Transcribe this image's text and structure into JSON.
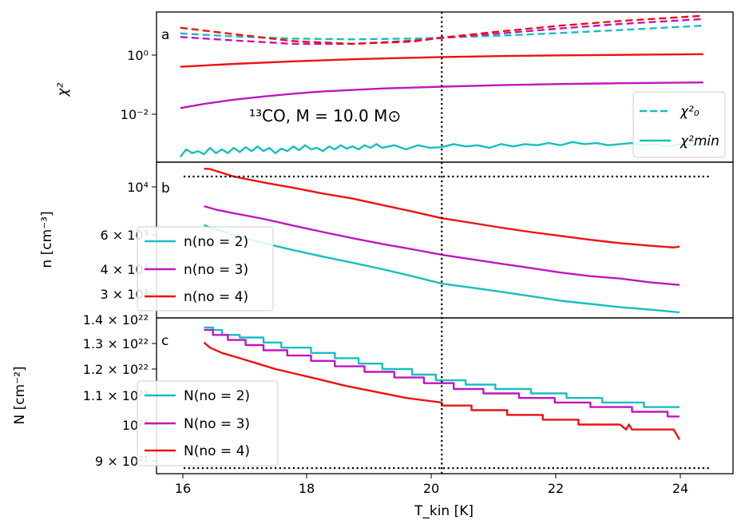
{
  "figure": {
    "xlabel": "T_kin [K]",
    "xtick_labels": [
      "16",
      "18",
      "20",
      "22",
      "24"
    ],
    "xlim": [
      15.2,
      24.9
    ],
    "vline_x": 20.0
  },
  "panels": [
    {
      "letter": "a",
      "ylabel": "χ²",
      "ytick_labels": [
        "10⁰",
        "10⁻²"
      ],
      "annotation": "¹³CO,  M = 10.0 M⊙",
      "legend": [
        "χ²₀",
        "χ²min"
      ]
    },
    {
      "letter": "b",
      "ylabel": "n [cm⁻³]",
      "ytick_labels": [
        "10⁴",
        "6 × 10³",
        "4 × 10³",
        "3 × 10³"
      ],
      "legend": [
        "n(no = 2)",
        "n(no = 3)",
        "n(no = 4)"
      ]
    },
    {
      "letter": "c",
      "ylabel": "N [cm⁻²]",
      "ytick_labels": [
        "1.4 × 10²²",
        "1.3 × 10²²",
        "1.2 × 10²²",
        "1.1 × 10²²",
        "10²²",
        "9 × 10²¹"
      ],
      "legend": [
        "N(no = 2)",
        "N(no = 3)",
        "N(no = 4)"
      ]
    }
  ],
  "colors": {
    "cyan": "#17bfbf",
    "magenta": "#bf17bf",
    "red": "#ee1111"
  },
  "chart_data": [
    {
      "type": "line",
      "panel": "a",
      "yscale": "log",
      "ylim": [
        0.0003,
        30
      ],
      "series": [
        {
          "name": "χ²₀",
          "style": "dashed",
          "color": "#17bfbf",
          "x": [
            15.6,
            16.5,
            17.5,
            18.5,
            19.5,
            20.0,
            21.0,
            22.0,
            23.0,
            24.4
          ],
          "values": [
            5.8,
            4.6,
            3.9,
            3.7,
            3.9,
            4.2,
            4.9,
            6.0,
            7.5,
            10.5
          ]
        },
        {
          "style": "dashed",
          "color": "#bf17bf",
          "x": [
            15.6,
            16.5,
            17.5,
            18.5,
            19.5,
            20.0,
            21.0,
            22.0,
            23.0,
            24.4
          ],
          "values": [
            4.4,
            3.4,
            2.6,
            2.6,
            3.3,
            4.1,
            5.8,
            8.5,
            12.0,
            17.5
          ]
        },
        {
          "style": "dashed",
          "color": "#ee1111",
          "x": [
            15.6,
            16.5,
            17.5,
            18.5,
            19.5,
            20.0,
            21.0,
            22.0,
            23.0,
            24.4
          ],
          "values": [
            9.0,
            5.5,
            3.2,
            2.6,
            3.1,
            4.2,
            6.8,
            10.5,
            15.0,
            22.5
          ]
        },
        {
          "name": "χ²min",
          "style": "solid",
          "color": "#bf17bf",
          "x": [
            15.6,
            16.0,
            16.5,
            17.0,
            17.5,
            18.0,
            19.0,
            20.0,
            21.0,
            22.0,
            23.0,
            24.4
          ],
          "values": [
            0.019,
            0.026,
            0.036,
            0.046,
            0.057,
            0.068,
            0.085,
            0.098,
            0.11,
            0.12,
            0.127,
            0.135
          ]
        },
        {
          "style": "solid",
          "color": "#ee1111",
          "x": [
            15.6,
            16.5,
            17.5,
            18.5,
            19.5,
            20.0,
            21.0,
            22.0,
            23.0,
            24.4
          ],
          "values": [
            0.45,
            0.56,
            0.68,
            0.8,
            0.9,
            0.95,
            1.02,
            1.08,
            1.12,
            1.18
          ]
        },
        {
          "style": "solid",
          "color": "#17bfbf",
          "x": [
            15.6,
            15.7,
            15.8,
            15.9,
            16.0,
            16.1,
            16.2,
            16.3,
            16.4,
            16.5,
            16.6,
            16.7,
            16.8,
            16.9,
            17.0,
            17.1,
            17.2,
            17.3,
            17.4,
            17.5,
            17.6,
            17.7,
            17.8,
            17.9,
            18.0,
            18.1,
            18.2,
            18.3,
            18.4,
            18.5,
            18.6,
            18.7,
            18.8,
            18.9,
            19.0,
            19.2,
            19.4,
            19.6,
            19.8,
            20.0,
            20.2,
            20.4,
            20.6,
            20.8,
            21.0,
            21.2,
            21.4,
            21.6,
            21.8,
            22.0,
            22.2,
            22.4,
            22.6,
            22.8,
            23.0,
            23.2,
            23.4,
            23.6,
            23.8,
            24.0,
            24.2,
            24.4
          ],
          "values": [
            0.00045,
            0.0008,
            0.0006,
            0.0007,
            0.00055,
            0.0009,
            0.0006,
            0.0008,
            0.0006,
            0.0009,
            0.00065,
            0.00095,
            0.0007,
            0.001,
            0.0007,
            0.0009,
            0.0006,
            0.00085,
            0.0007,
            0.001,
            0.00075,
            0.0011,
            0.0008,
            0.0009,
            0.0007,
            0.001,
            0.0008,
            0.0011,
            0.00085,
            0.001,
            0.0008,
            0.0011,
            0.0009,
            0.0012,
            0.0009,
            0.0011,
            0.0008,
            0.0011,
            0.0009,
            0.00095,
            0.0012,
            0.001,
            0.0011,
            0.0009,
            0.0012,
            0.001,
            0.0012,
            0.0011,
            0.0013,
            0.0011,
            0.0014,
            0.0012,
            0.0013,
            0.0011,
            0.0012,
            0.0013,
            0.0011,
            0.0012,
            0.001,
            0.0012,
            0.0011,
            0.0012
          ]
        }
      ]
    },
    {
      "type": "line",
      "panel": "b",
      "yscale": "log",
      "ylim": [
        2450,
        13200
      ],
      "hline": 11300,
      "series": [
        {
          "name": "n(no = 2)",
          "color": "#17bfbf",
          "x": [
            16.0,
            16.1,
            16.2,
            16.5,
            17.0,
            17.5,
            18.0,
            18.5,
            19.0,
            19.5,
            20.0,
            20.5,
            21.0,
            21.5,
            22.0,
            22.5,
            23.0,
            23.5,
            24.0
          ],
          "values": [
            6700,
            6500,
            6400,
            6000,
            5500,
            5100,
            4750,
            4450,
            4150,
            3850,
            3550,
            3400,
            3250,
            3100,
            2950,
            2850,
            2750,
            2680,
            2600
          ]
        },
        {
          "name": "n(no = 3)",
          "color": "#bf17bf",
          "x": [
            16.0,
            16.2,
            16.5,
            17.0,
            17.5,
            18.0,
            18.5,
            19.0,
            19.5,
            20.0,
            20.5,
            21.0,
            21.5,
            22.0,
            22.5,
            23.0,
            23.5,
            24.0
          ],
          "values": [
            8200,
            7900,
            7600,
            7150,
            6650,
            6200,
            5800,
            5450,
            5150,
            4850,
            4620,
            4400,
            4200,
            4000,
            3850,
            3750,
            3600,
            3500
          ]
        },
        {
          "name": "n(no = 4)",
          "color": "#ee1111",
          "x": [
            16.0,
            16.1,
            16.2,
            16.5,
            17.0,
            17.5,
            18.0,
            18.5,
            19.0,
            19.5,
            20.0,
            20.5,
            21.0,
            21.5,
            22.0,
            22.5,
            23.0,
            23.5,
            23.9,
            24.0
          ],
          "values": [
            12300,
            12250,
            12000,
            11300,
            10600,
            10000,
            9400,
            8900,
            8300,
            7750,
            7200,
            6850,
            6500,
            6200,
            5950,
            5700,
            5500,
            5350,
            5250,
            5300
          ]
        }
      ]
    },
    {
      "type": "line",
      "panel": "c",
      "yscale": "log",
      "ylim": [
        8.85e+21,
        1.41e+22
      ],
      "hline": 9e+21,
      "series": [
        {
          "name": "N(no = 2)",
          "color": "#17bfbf",
          "x": [
            16.0,
            16.15,
            16.15,
            16.3,
            16.3,
            16.6,
            16.6,
            17.0,
            17.0,
            17.3,
            17.3,
            17.8,
            17.8,
            18.2,
            18.2,
            18.6,
            18.6,
            19.0,
            19.0,
            19.5,
            19.5,
            19.9,
            19.9,
            20.4,
            20.4,
            20.9,
            20.9,
            21.5,
            21.5,
            22.1,
            22.1,
            22.7,
            22.7,
            23.4,
            23.4,
            24.0
          ],
          "values": [
            1.37e+22,
            1.37e+22,
            1.36e+22,
            1.36e+22,
            1.34e+22,
            1.34e+22,
            1.33e+22,
            1.33e+22,
            1.31e+22,
            1.31e+22,
            1.29e+22,
            1.29e+22,
            1.27e+22,
            1.27e+22,
            1.25e+22,
            1.25e+22,
            1.23e+22,
            1.23e+22,
            1.21e+22,
            1.21e+22,
            1.19e+22,
            1.19e+22,
            1.17e+22,
            1.17e+22,
            1.155e+22,
            1.155e+22,
            1.14e+22,
            1.14e+22,
            1.125e+22,
            1.125e+22,
            1.11e+22,
            1.11e+22,
            1.095e+22,
            1.095e+22,
            1.08e+22,
            1.08e+22
          ]
        },
        {
          "name": "N(no = 3)",
          "color": "#bf17bf",
          "x": [
            16.0,
            16.15,
            16.15,
            16.4,
            16.4,
            16.7,
            16.7,
            17.0,
            17.0,
            17.4,
            17.4,
            17.8,
            17.8,
            18.2,
            18.2,
            18.7,
            18.7,
            19.2,
            19.2,
            19.7,
            19.7,
            20.2,
            20.2,
            20.7,
            20.7,
            21.3,
            21.3,
            21.9,
            21.9,
            22.5,
            22.5,
            23.2,
            23.2,
            23.8,
            23.8,
            24.0
          ],
          "values": [
            1.36e+22,
            1.36e+22,
            1.34e+22,
            1.34e+22,
            1.32e+22,
            1.32e+22,
            1.3e+22,
            1.3e+22,
            1.28e+22,
            1.28e+22,
            1.26e+22,
            1.26e+22,
            1.24e+22,
            1.24e+22,
            1.22e+22,
            1.22e+22,
            1.2e+22,
            1.2e+22,
            1.18e+22,
            1.18e+22,
            1.16e+22,
            1.16e+22,
            1.14e+22,
            1.14e+22,
            1.125e+22,
            1.125e+22,
            1.11e+22,
            1.11e+22,
            1.095e+22,
            1.095e+22,
            1.08e+22,
            1.08e+22,
            1.065e+22,
            1.065e+22,
            1.05e+22,
            1.05e+22
          ]
        },
        {
          "name": "N(no = 4)",
          "color": "#ee1111",
          "x": [
            16.0,
            16.1,
            16.1,
            16.3,
            16.3,
            16.6,
            16.6,
            16.9,
            16.9,
            17.2,
            17.2,
            17.6,
            17.6,
            18.0,
            18.0,
            18.4,
            18.4,
            18.9,
            18.9,
            19.4,
            19.4,
            20.0,
            20.0,
            20.5,
            20.5,
            21.1,
            21.1,
            21.7,
            21.7,
            22.3,
            22.3,
            23.0,
            23.1,
            23.15,
            23.2,
            23.3,
            23.3,
            23.9,
            24.0
          ],
          "values": [
            1.31e+22,
            1.29e+22,
            1.29e+22,
            1.27e+22,
            1.27e+22,
            1.25e+22,
            1.25e+22,
            1.23e+22,
            1.23e+22,
            1.21e+22,
            1.21e+22,
            1.19e+22,
            1.19e+22,
            1.17e+22,
            1.17e+22,
            1.15e+22,
            1.15e+22,
            1.13e+22,
            1.13e+22,
            1.11e+22,
            1.11e+22,
            1.095e+22,
            1.085e+22,
            1.085e+22,
            1.07e+22,
            1.07e+22,
            1.055e+22,
            1.055e+22,
            1.04e+22,
            1.04e+22,
            1.025e+22,
            1.025e+22,
            1.01e+22,
            1.025e+22,
            1.01e+22,
            1.01e+22,
            1.01e+22,
            1.01e+22,
            9.8e+21
          ]
        }
      ]
    }
  ]
}
